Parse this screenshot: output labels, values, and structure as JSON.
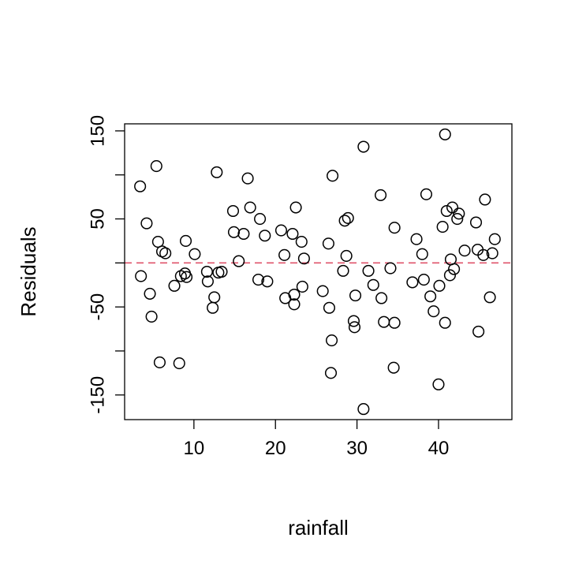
{
  "chart_data": {
    "type": "scatter",
    "title": "",
    "xlabel": "rainfall",
    "ylabel": "Residuals",
    "xlim": [
      1.5,
      49
    ],
    "ylim": [
      -178,
      158
    ],
    "xticks": [
      10,
      20,
      30,
      40
    ],
    "yticks": [
      -150,
      -50,
      50,
      150
    ],
    "ytick_minor": [
      -100,
      0,
      100
    ],
    "grid": false,
    "marker": "open-circle",
    "reference_line": {
      "y": 0,
      "style": "dashed",
      "color": "#DF536B"
    },
    "points": [
      {
        "x": 3.4,
        "y": 87
      },
      {
        "x": 3.5,
        "y": -15
      },
      {
        "x": 4.2,
        "y": 45
      },
      {
        "x": 4.6,
        "y": -35
      },
      {
        "x": 4.8,
        "y": -61
      },
      {
        "x": 5.4,
        "y": 110
      },
      {
        "x": 5.6,
        "y": 24
      },
      {
        "x": 5.8,
        "y": -113
      },
      {
        "x": 6.1,
        "y": 13
      },
      {
        "x": 6.5,
        "y": 11
      },
      {
        "x": 7.6,
        "y": -26
      },
      {
        "x": 8.2,
        "y": -114
      },
      {
        "x": 8.4,
        "y": -15
      },
      {
        "x": 8.9,
        "y": -12
      },
      {
        "x": 9.0,
        "y": 25
      },
      {
        "x": 9.1,
        "y": -16
      },
      {
        "x": 10.1,
        "y": 10
      },
      {
        "x": 11.6,
        "y": -10
      },
      {
        "x": 11.7,
        "y": -21
      },
      {
        "x": 12.3,
        "y": -51
      },
      {
        "x": 12.5,
        "y": -39
      },
      {
        "x": 12.8,
        "y": 103
      },
      {
        "x": 13.0,
        "y": -11
      },
      {
        "x": 13.4,
        "y": -10
      },
      {
        "x": 14.8,
        "y": 59
      },
      {
        "x": 14.9,
        "y": 35
      },
      {
        "x": 15.5,
        "y": 2
      },
      {
        "x": 16.1,
        "y": 33
      },
      {
        "x": 16.6,
        "y": 96
      },
      {
        "x": 16.9,
        "y": 63
      },
      {
        "x": 17.9,
        "y": -19
      },
      {
        "x": 18.1,
        "y": 50
      },
      {
        "x": 18.7,
        "y": 31
      },
      {
        "x": 19.0,
        "y": -21
      },
      {
        "x": 20.7,
        "y": 37
      },
      {
        "x": 21.1,
        "y": 9
      },
      {
        "x": 21.2,
        "y": -40
      },
      {
        "x": 22.1,
        "y": 33
      },
      {
        "x": 22.3,
        "y": -36
      },
      {
        "x": 22.3,
        "y": -47
      },
      {
        "x": 22.5,
        "y": 63
      },
      {
        "x": 23.2,
        "y": 24
      },
      {
        "x": 23.3,
        "y": -27
      },
      {
        "x": 23.5,
        "y": 5
      },
      {
        "x": 25.8,
        "y": -32
      },
      {
        "x": 26.5,
        "y": 22
      },
      {
        "x": 26.6,
        "y": -51
      },
      {
        "x": 26.8,
        "y": -125
      },
      {
        "x": 26.9,
        "y": -88
      },
      {
        "x": 27.0,
        "y": 99
      },
      {
        "x": 28.3,
        "y": -9
      },
      {
        "x": 28.5,
        "y": 48
      },
      {
        "x": 28.7,
        "y": 8
      },
      {
        "x": 28.9,
        "y": 51
      },
      {
        "x": 29.6,
        "y": -66
      },
      {
        "x": 29.7,
        "y": -73
      },
      {
        "x": 29.8,
        "y": -37
      },
      {
        "x": 30.8,
        "y": 132
      },
      {
        "x": 30.8,
        "y": -166
      },
      {
        "x": 31.4,
        "y": -9
      },
      {
        "x": 32.0,
        "y": -25
      },
      {
        "x": 32.9,
        "y": 77
      },
      {
        "x": 33.0,
        "y": -40
      },
      {
        "x": 33.3,
        "y": -67
      },
      {
        "x": 34.1,
        "y": -6
      },
      {
        "x": 34.5,
        "y": -119
      },
      {
        "x": 34.6,
        "y": 40
      },
      {
        "x": 34.6,
        "y": -68
      },
      {
        "x": 36.8,
        "y": -22
      },
      {
        "x": 37.3,
        "y": 27
      },
      {
        "x": 38.0,
        "y": 10
      },
      {
        "x": 38.2,
        "y": -19
      },
      {
        "x": 38.5,
        "y": 78
      },
      {
        "x": 39.0,
        "y": -38
      },
      {
        "x": 39.4,
        "y": -55
      },
      {
        "x": 40.0,
        "y": -138
      },
      {
        "x": 40.1,
        "y": -26
      },
      {
        "x": 40.5,
        "y": 41
      },
      {
        "x": 40.8,
        "y": -68
      },
      {
        "x": 40.8,
        "y": 146
      },
      {
        "x": 41.0,
        "y": 59
      },
      {
        "x": 41.4,
        "y": -14
      },
      {
        "x": 41.5,
        "y": 4
      },
      {
        "x": 41.7,
        "y": 63
      },
      {
        "x": 41.9,
        "y": -7
      },
      {
        "x": 42.3,
        "y": 50
      },
      {
        "x": 42.5,
        "y": 56
      },
      {
        "x": 43.2,
        "y": 14
      },
      {
        "x": 44.6,
        "y": 46
      },
      {
        "x": 44.8,
        "y": 15
      },
      {
        "x": 44.9,
        "y": -78
      },
      {
        "x": 45.5,
        "y": 9
      },
      {
        "x": 45.7,
        "y": 72
      },
      {
        "x": 46.3,
        "y": -39
      },
      {
        "x": 46.6,
        "y": 11
      },
      {
        "x": 46.9,
        "y": 27
      }
    ]
  }
}
